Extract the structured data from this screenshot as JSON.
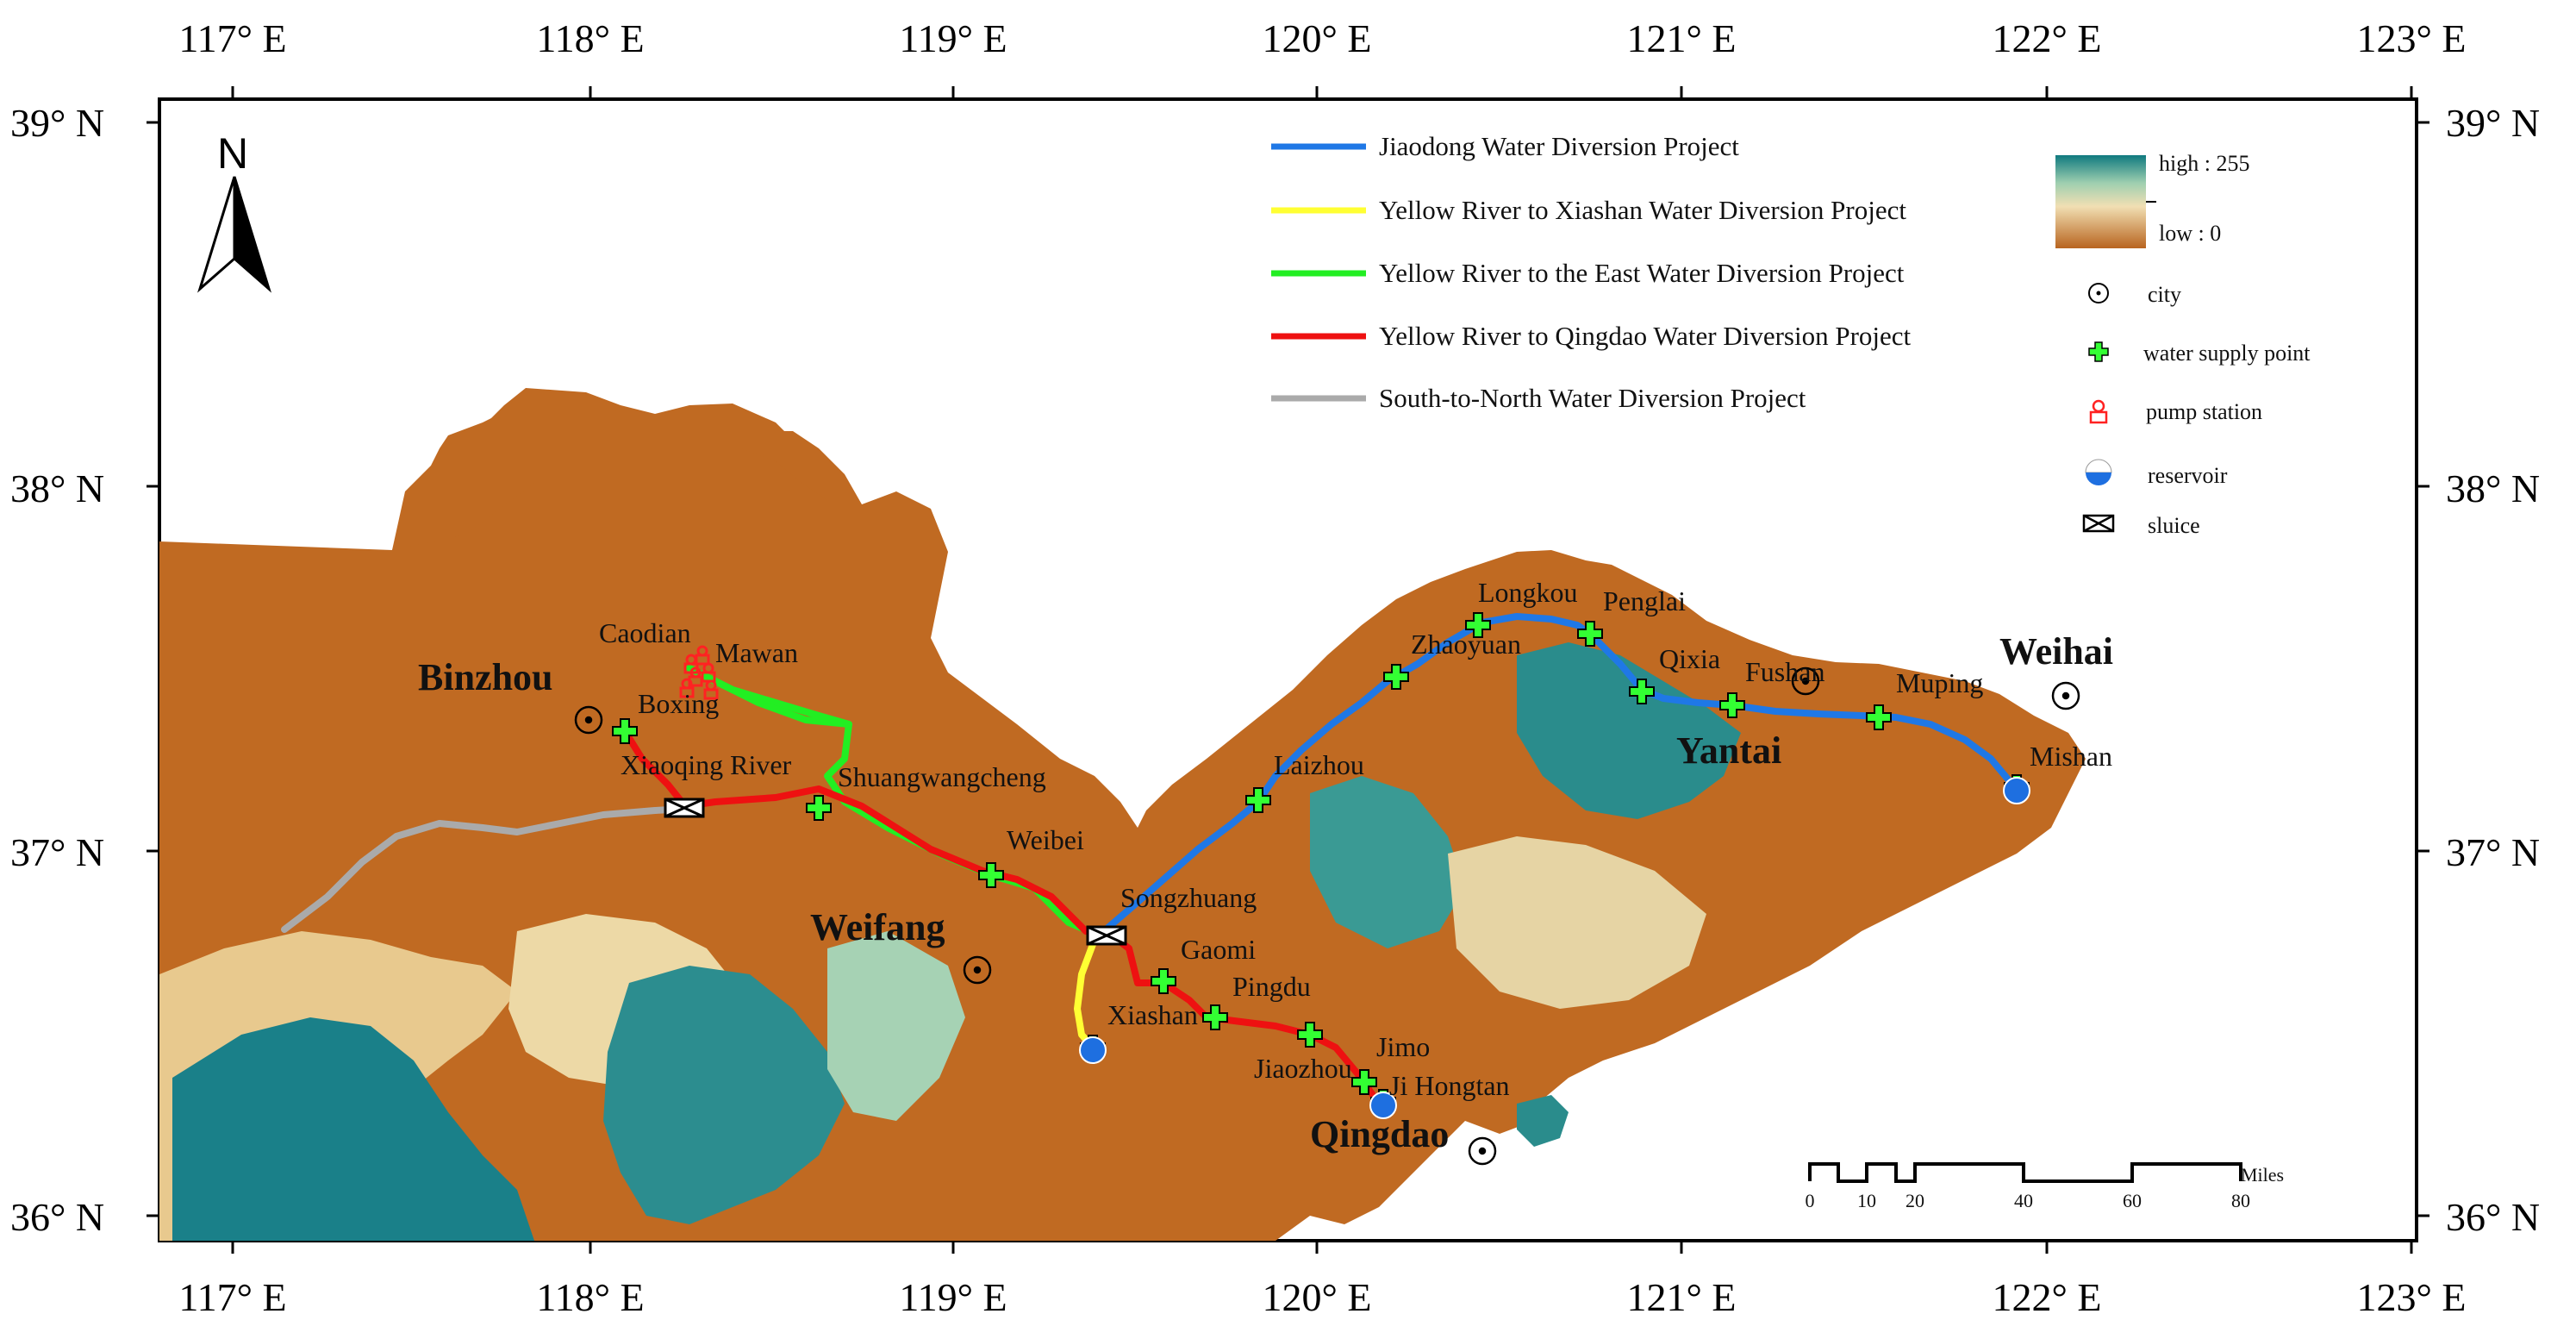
{
  "graticule": {
    "lon_labels": [
      "117° E",
      "118° E",
      "119° E",
      "120° E",
      "121° E",
      "122° E",
      "123° E"
    ],
    "lat_labels": [
      "39° N",
      "38° N",
      "37° N",
      "36° N"
    ]
  },
  "north_arrow": {
    "label": "N"
  },
  "legend": {
    "lines": [
      {
        "label": "Jiaodong Water Diversion Project",
        "color": "#1f78e6"
      },
      {
        "label": "Yellow River to Xiashan Water Diversion Project",
        "color": "#ffff33"
      },
      {
        "label": "Yellow River to the East Water Diversion Project",
        "color": "#22ee22"
      },
      {
        "label": "Yellow River to Qingdao Water Diversion Project",
        "color": "#ee1111"
      },
      {
        "label": "South-to-North Water Diversion Project",
        "color": "#aaaaaa"
      }
    ],
    "ramp": {
      "high": "high : 255",
      "low": "low : 0"
    },
    "symbols": [
      "city",
      "water supply point",
      "pump station",
      "reservoir",
      "sluice"
    ]
  },
  "cities": [
    "Binzhou",
    "Weifang",
    "Yantai",
    "Weihai",
    "Qingdao"
  ],
  "places": [
    "Caodian",
    "Mawan",
    "Boxing",
    "Xiaoqing River",
    "Shuangwangcheng",
    "Weibei",
    "Songzhuang",
    "Gaomi",
    "Pingdu",
    "Xiashan",
    "Jiaozhou",
    "Jimo",
    "Ji Hongtan",
    "Laizhou",
    "Zhaoyuan",
    "Longkou",
    "Penglai",
    "Qixia",
    "Fushan",
    "Muping",
    "Mishan"
  ],
  "scale_bar": {
    "ticks": [
      "0",
      "10",
      "20",
      "40",
      "60",
      "80"
    ],
    "unit": "Miles"
  }
}
